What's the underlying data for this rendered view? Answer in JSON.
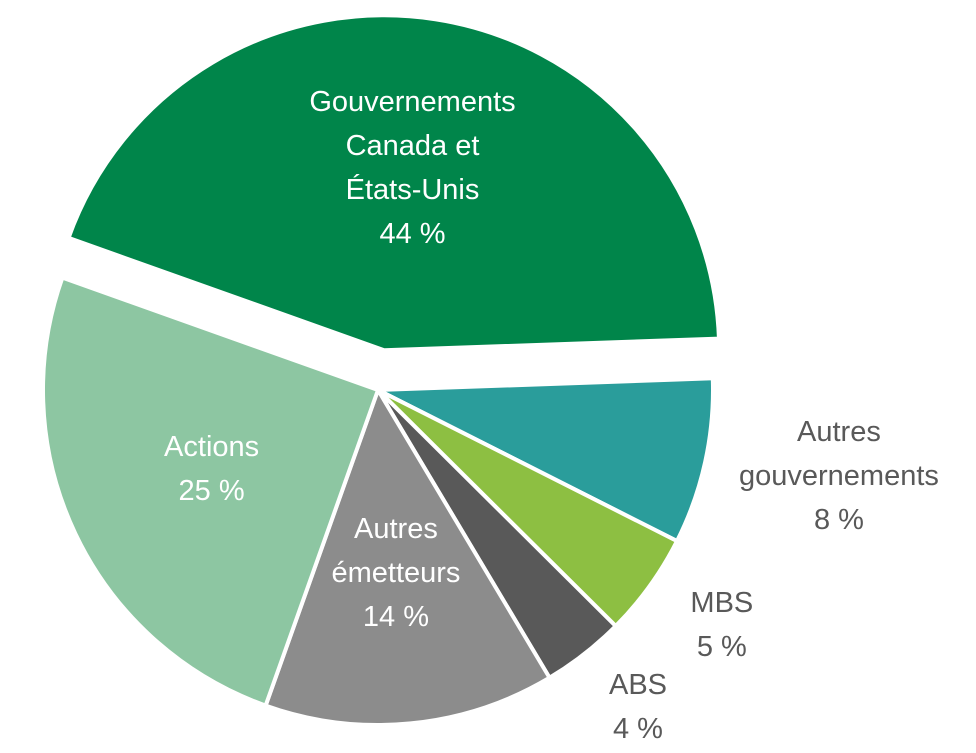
{
  "chart_data": {
    "type": "pie",
    "categories": [
      "Gouvernements\nCanada et\nÉtats-Unis",
      "Autres\ngouvernements",
      "MBS",
      "ABS",
      "Autres\németteurs",
      "Actions"
    ],
    "values": [
      44,
      8,
      5,
      4,
      14,
      25
    ],
    "value_labels": [
      "44 %",
      "8 %",
      "5 %",
      "4 %",
      "14 %",
      "25 %"
    ],
    "colors": [
      "#00854a",
      "#2a9d9b",
      "#8dbf42",
      "#595959",
      "#8c8c8c",
      "#8dc6a2"
    ],
    "explode": [
      0.12,
      0,
      0,
      0,
      0,
      0
    ]
  }
}
